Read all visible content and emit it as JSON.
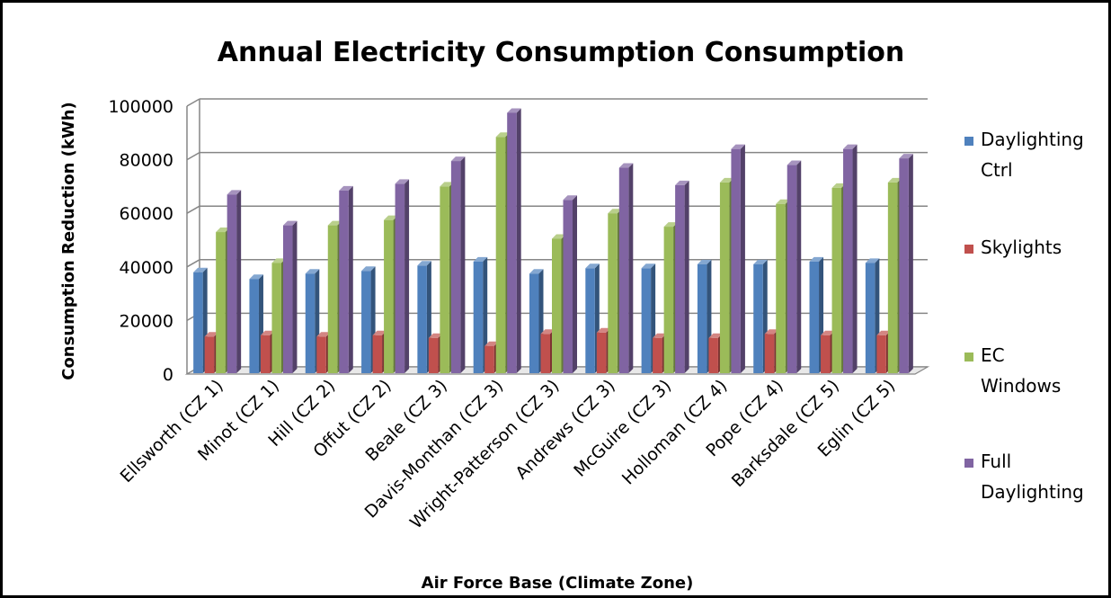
{
  "chart_data": {
    "type": "bar",
    "title": "Annual Electricity Consumption Consumption",
    "xlabel": "Air Force Base (Climate Zone)",
    "ylabel": "Consumption Reduction (kWh)",
    "ylim": [
      0,
      100000
    ],
    "yticks": [
      "0",
      "20000",
      "40000",
      "60000",
      "80000",
      "100000"
    ],
    "grid": true,
    "legend_position": "right",
    "categories": [
      "Ellsworth (CZ 1)",
      "Minot (CZ 1)",
      "Hill (CZ 2)",
      "Offut (CZ 2)",
      "Beale (CZ 3)",
      "Davis-Monthan (CZ 3)",
      "Wright-Patterson (CZ 3)",
      "Andrews (CZ 3)",
      "McGuire (CZ 3)",
      "Holloman (CZ 4)",
      "Pope (CZ 4)",
      "Barksdale (CZ 5)",
      "Eglin (CZ 5)"
    ],
    "series": [
      {
        "name": "Daylighting Ctrl",
        "legend_lines": [
          "Daylighting",
          "Ctrl"
        ],
        "color": "#4F81BD",
        "values": [
          38000,
          35500,
          37500,
          38500,
          40500,
          42000,
          37500,
          39500,
          39500,
          41000,
          41000,
          42000,
          41500
        ]
      },
      {
        "name": "Skylights",
        "legend_lines": [
          "Skylights"
        ],
        "color": "#C0504D",
        "values": [
          14000,
          14500,
          14000,
          14500,
          13500,
          10500,
          15000,
          15500,
          13500,
          13500,
          15000,
          14500,
          14500
        ]
      },
      {
        "name": "EC Windows",
        "legend_lines": [
          "EC",
          "Windows"
        ],
        "color": "#9BBB59",
        "values": [
          53000,
          41500,
          55500,
          57500,
          70000,
          88500,
          50500,
          60000,
          55000,
          71500,
          63500,
          69500,
          71500
        ]
      },
      {
        "name": "Full Daylighting",
        "legend_lines": [
          "Full",
          "Daylighting"
        ],
        "color": "#8064A2",
        "values": [
          67000,
          55500,
          68500,
          71000,
          79500,
          97500,
          65000,
          77000,
          70500,
          84000,
          78000,
          84000,
          80500
        ]
      }
    ]
  }
}
